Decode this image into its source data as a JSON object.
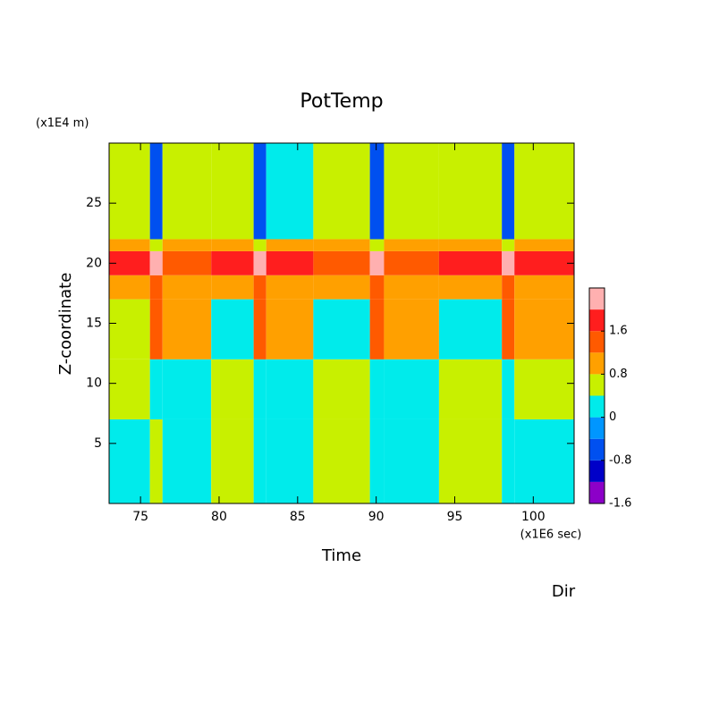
{
  "chart_data": {
    "type": "contour",
    "title": "PotTemp",
    "x_label": "Time",
    "x_unit": "(x1E6 sec)",
    "y_label": "Z-coordinate",
    "y_unit": "(x1E4 m)",
    "extra_label": "Dir",
    "xlim": [
      73,
      102.6
    ],
    "xticks": [
      75,
      80,
      85,
      90,
      95,
      100
    ],
    "ylim": [
      0,
      30
    ],
    "yticks": [
      5,
      10,
      15,
      20,
      25
    ],
    "x_edges": [
      73,
      75.6,
      76.4,
      79.5,
      82.2,
      83,
      86,
      89.6,
      90.5,
      94,
      98,
      98.8,
      102.6
    ],
    "y_edges": [
      0,
      7,
      12,
      17,
      19,
      21,
      22,
      30
    ],
    "z": [
      [
        -0.2,
        0.2,
        -0.2,
        0.2,
        -0.2,
        -0.2,
        0.2,
        -0.2,
        -0.2,
        0.2,
        -0.2,
        -0.2
      ],
      [
        0.2,
        -0.2,
        -0.2,
        0.2,
        -0.2,
        -0.2,
        0.2,
        -0.2,
        -0.2,
        0.2,
        -0.2,
        0.2
      ],
      [
        0.2,
        1.0,
        0.6,
        -0.2,
        1.0,
        0.6,
        -0.2,
        1.0,
        0.6,
        -0.2,
        1.0,
        0.6
      ],
      [
        0.6,
        1.0,
        0.6,
        0.6,
        1.0,
        0.6,
        0.6,
        1.0,
        0.6,
        0.6,
        1.0,
        0.6
      ],
      [
        1.4,
        1.8,
        1.0,
        1.4,
        1.8,
        1.4,
        1.0,
        1.8,
        1.0,
        1.4,
        1.8,
        1.4
      ],
      [
        0.6,
        0.2,
        0.6,
        0.6,
        0.2,
        0.6,
        0.6,
        0.2,
        0.6,
        0.6,
        0.2,
        0.6
      ],
      [
        0.2,
        -1.0,
        0.2,
        0.2,
        -1.0,
        -0.2,
        0.2,
        -1.0,
        0.2,
        0.2,
        -1.0,
        0.2
      ]
    ],
    "levels": [
      -1.6,
      -1.2,
      -0.8,
      -0.4,
      0,
      0.4,
      0.8,
      1.2,
      1.6
    ],
    "colors": [
      "#8c00c8",
      "#0000c8",
      "#0050f0",
      "#0096ff",
      "#00ebeb",
      "#c8f000",
      "#ffa000",
      "#ff5a00",
      "#ff1e1e",
      "#ffb0b0"
    ],
    "colorbar_ticks": [
      -1.6,
      -0.8,
      0,
      0.8,
      1.6
    ]
  }
}
